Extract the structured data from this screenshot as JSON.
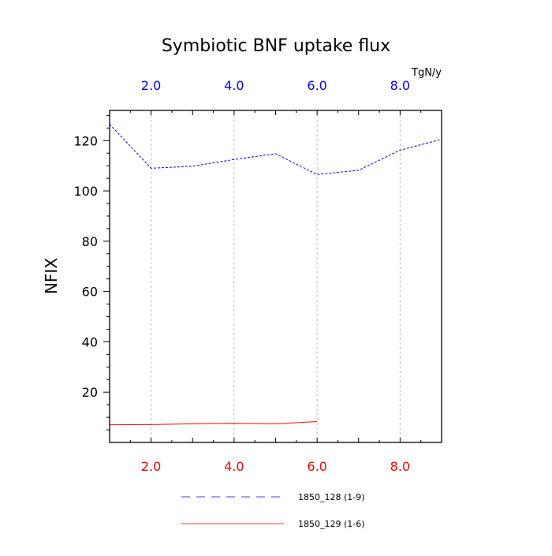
{
  "chart_data": {
    "type": "line",
    "title": "Symbiotic BNF uptake flux",
    "ylabel": "NFIX",
    "xlabel": "",
    "top_axis_unit": "TgN/y",
    "xlim": [
      1,
      9
    ],
    "ylim": [
      0,
      132
    ],
    "x_ticks": [
      2,
      4,
      6,
      8
    ],
    "x_tick_labels": [
      "2.0",
      "4.0",
      "6.0",
      "8.0"
    ],
    "y_ticks": [
      20,
      40,
      60,
      80,
      100,
      120
    ],
    "y_tick_labels": [
      "20",
      "40",
      "60",
      "80",
      "100",
      "120"
    ],
    "x_gridlines": true,
    "y_gridlines": false,
    "top_axis_color": "#0000ff",
    "bottom_axis_color": "#ff0000",
    "legend_position": "bottom",
    "series": [
      {
        "name": "1850_128 (1-9)",
        "color": "#0000ff",
        "style": "dashed",
        "x": [
          1,
          2,
          3,
          4,
          5,
          6,
          7,
          8,
          9
        ],
        "values": [
          126.5,
          109,
          109.8,
          112.5,
          114.8,
          106.5,
          108.2,
          116.2,
          120.5
        ]
      },
      {
        "name": "1850_129 (1-6)",
        "color": "#ff0000",
        "style": "solid",
        "x": [
          1,
          2,
          3,
          4,
          5,
          6
        ],
        "values": [
          7.0,
          7.1,
          7.4,
          7.6,
          7.4,
          8.3
        ]
      }
    ]
  }
}
